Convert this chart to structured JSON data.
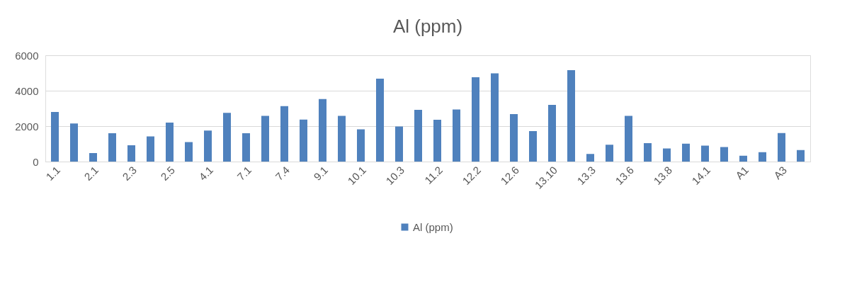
{
  "chart_data": {
    "type": "bar",
    "title": "Al (ppm)",
    "categories": [
      "1.1",
      null,
      "2.1",
      null,
      "2.3",
      null,
      "2.5",
      null,
      "4.1",
      null,
      "7.1",
      null,
      "7.4",
      null,
      "9.1",
      null,
      "10.1",
      null,
      "10.3",
      null,
      "11.2",
      null,
      "12.2",
      null,
      "12.6",
      null,
      "13.10",
      null,
      "13.3",
      null,
      "13.6",
      null,
      "13.8",
      null,
      "14.1",
      null,
      "A1",
      null,
      "A3",
      null
    ],
    "series": [
      {
        "name": "Al (ppm)",
        "color": "#4f81bd",
        "values": [
          2800,
          2150,
          480,
          1600,
          920,
          1420,
          2200,
          1100,
          1750,
          2750,
          1600,
          2580,
          3130,
          2370,
          3530,
          2580,
          1820,
          4680,
          1980,
          2920,
          2360,
          2940,
          4760,
          4980,
          2680,
          1720,
          3200,
          5160,
          430,
          950,
          2580,
          1040,
          740,
          1010,
          900,
          820,
          330,
          530,
          1610,
          650
        ]
      }
    ],
    "ylim": [
      0,
      6000
    ],
    "yticks": [
      0,
      2000,
      4000,
      6000
    ],
    "grid": "y",
    "legend": "bottom"
  }
}
